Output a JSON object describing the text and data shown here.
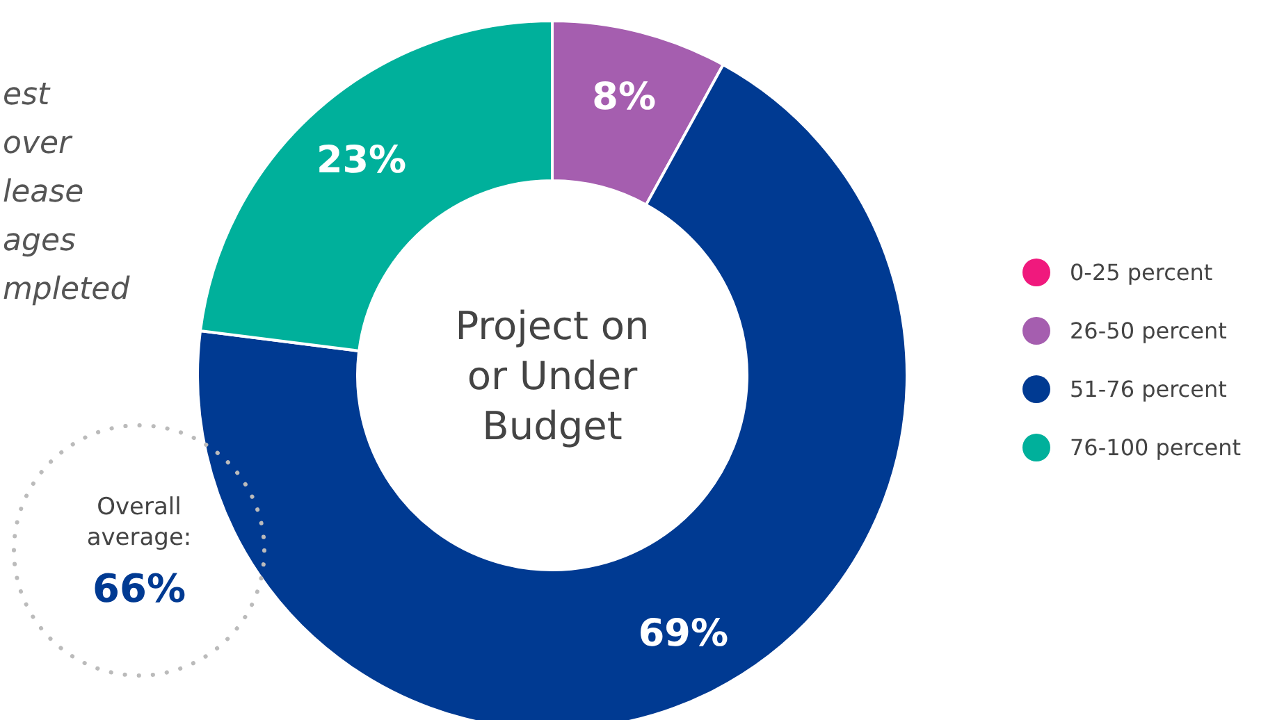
{
  "chart_data": {
    "type": "donut",
    "title": "Project on or Under Budget",
    "categories": [
      "0-25 percent",
      "26-50 percent",
      "51-76 percent",
      "76-100 percent"
    ],
    "values": [
      0,
      8,
      69,
      23
    ],
    "colors": [
      "#f0197d",
      "#a55eaf",
      "#003a92",
      "#00b09b"
    ],
    "value_labels": [
      null,
      "8%",
      "69%",
      "23%"
    ],
    "legend": "right",
    "annotations": [
      "est\nover\nlease\nages\nmpleted",
      "Overall\naverage:",
      "66%"
    ]
  }
}
